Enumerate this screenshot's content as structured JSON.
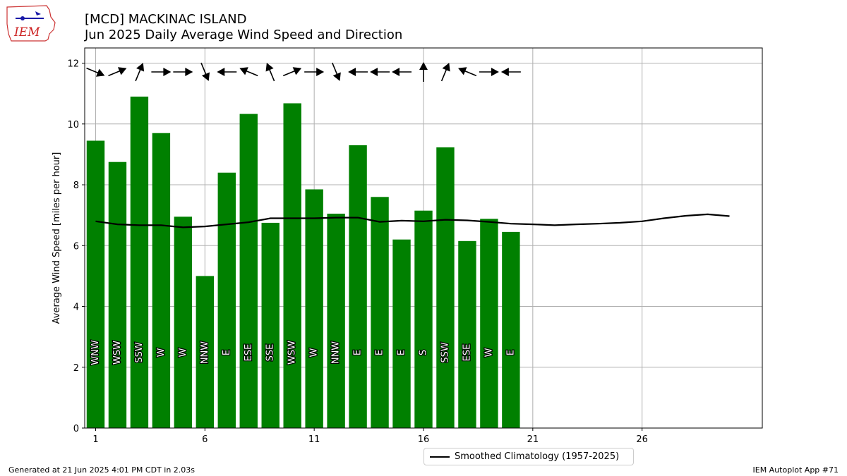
{
  "logo": {
    "text": "IEM"
  },
  "title": {
    "line1": "[MCD] MACKINAC ISLAND",
    "line2": "Jun 2025 Daily Average Wind Speed and Direction"
  },
  "footer": {
    "left": "Generated at 21 Jun 2025 4:01 PM CDT in 2.03s",
    "right": "IEM Autoplot App #71"
  },
  "colors": {
    "bar": "#008000",
    "climatology": "#000000",
    "grid": "#b0b0b0"
  },
  "chart_data": {
    "type": "bar",
    "ylabel": "Average Wind Speed [miles per hour]",
    "xlabel": "",
    "ylim": [
      0,
      12.5
    ],
    "xlim": [
      0.5,
      31.5
    ],
    "grid": true,
    "legend_placement": "bottom-center",
    "xticks": [
      1,
      6,
      11,
      16,
      21,
      26
    ],
    "yticks": [
      0,
      2,
      4,
      6,
      8,
      10,
      12
    ],
    "days": [
      1,
      2,
      3,
      4,
      5,
      6,
      7,
      8,
      9,
      10,
      11,
      12,
      13,
      14,
      15,
      16,
      17,
      18,
      19,
      20
    ],
    "values": [
      9.45,
      8.75,
      10.9,
      9.7,
      6.95,
      5.0,
      8.4,
      10.33,
      6.75,
      10.68,
      7.85,
      7.05,
      9.3,
      7.6,
      6.2,
      7.15,
      9.23,
      6.15,
      6.88,
      6.45
    ],
    "directions": [
      "WNW",
      "WSW",
      "SSW",
      "W",
      "W",
      "NNW",
      "E",
      "ESE",
      "SSE",
      "WSW",
      "W",
      "NNW",
      "E",
      "E",
      "E",
      "S",
      "SSW",
      "ESE",
      "W",
      "E"
    ],
    "climatology": {
      "name": "Smoothed Climatology (1957-2025)",
      "x": [
        1,
        2,
        3,
        4,
        5,
        6,
        7,
        8,
        9,
        10,
        11,
        12,
        13,
        14,
        15,
        16,
        17,
        18,
        19,
        20,
        21,
        22,
        23,
        24,
        25,
        26,
        27,
        28,
        29,
        30
      ],
      "y": [
        6.8,
        6.7,
        6.67,
        6.67,
        6.6,
        6.63,
        6.7,
        6.77,
        6.9,
        6.9,
        6.9,
        6.92,
        6.92,
        6.78,
        6.82,
        6.8,
        6.85,
        6.83,
        6.78,
        6.72,
        6.7,
        6.67,
        6.7,
        6.72,
        6.75,
        6.8,
        6.9,
        6.98,
        7.03,
        6.97
      ]
    }
  }
}
